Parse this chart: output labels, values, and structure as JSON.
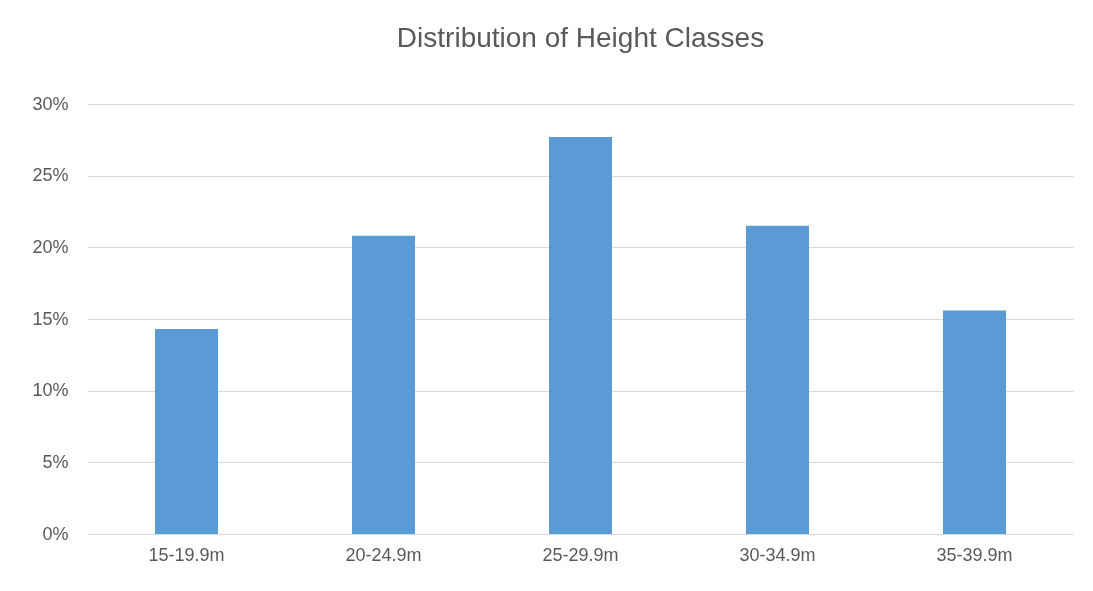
{
  "chart_data": {
    "type": "bar",
    "title": "Distribution of Height Classes",
    "categories": [
      "15-19.9m",
      "20-24.9m",
      "25-29.9m",
      "30-34.9m",
      "35-39.9m"
    ],
    "values": [
      14.3,
      20.8,
      27.7,
      21.5,
      15.6
    ],
    "color": "#5b9bd5",
    "ylim": [
      0,
      30
    ],
    "yticks": [
      {
        "value": 0,
        "label": "0%"
      },
      {
        "value": 5,
        "label": "5%"
      },
      {
        "value": 10,
        "label": "10%"
      },
      {
        "value": 15,
        "label": "15%"
      },
      {
        "value": 20,
        "label": "20%"
      },
      {
        "value": 25,
        "label": "25%"
      },
      {
        "value": 30,
        "label": "30%"
      }
    ],
    "grid": "y"
  }
}
